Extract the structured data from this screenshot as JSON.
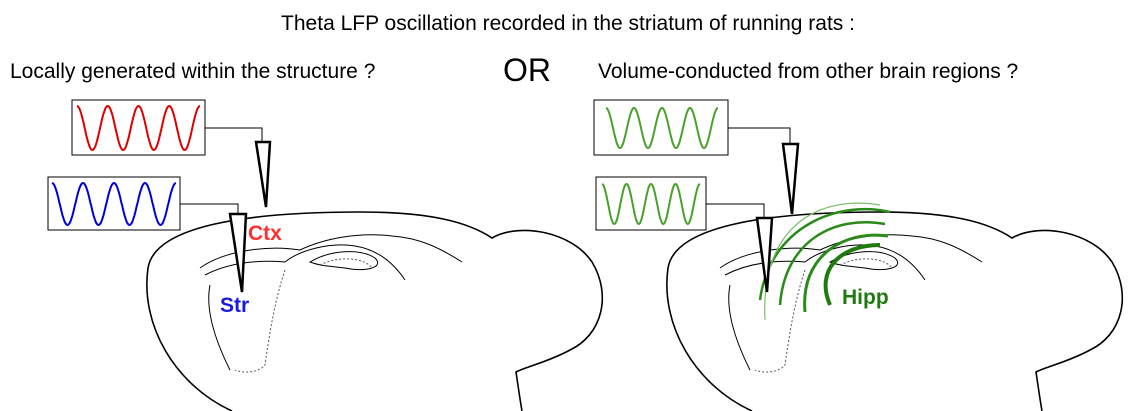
{
  "title": "Theta LFP oscillation recorded in the striatum of running rats :",
  "left_question": "Locally generated within the structure ?",
  "separator": "OR",
  "right_question": "Volume-conducted from other brain regions ?",
  "left_panel": {
    "labels": [
      "Ctx",
      "Str"
    ]
  },
  "right_panel": {
    "labels": [
      "Hipp"
    ]
  }
}
